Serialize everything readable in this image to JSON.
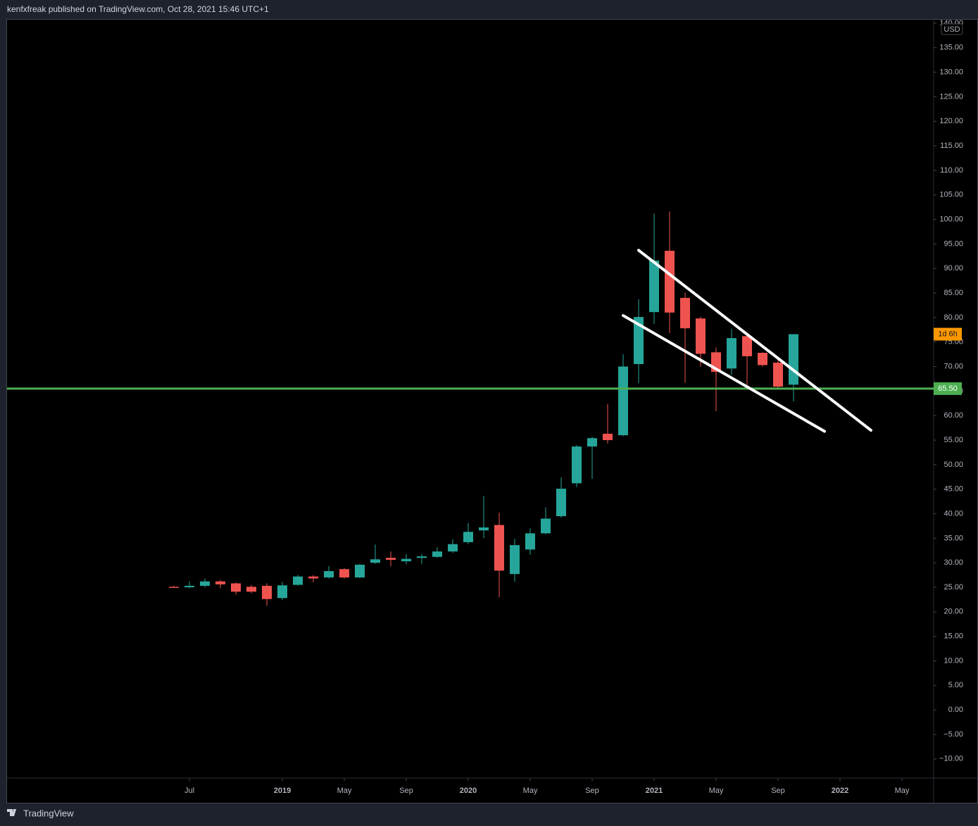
{
  "header": {
    "text": "kenfxfreak published on TradingView.com, Oct 28, 2021 15:46 UTC+1"
  },
  "footer": {
    "brand": "TradingView"
  },
  "chart_data": {
    "type": "candlestick",
    "currency": "USD",
    "x": [
      "2018-06",
      "2018-07",
      "2018-08",
      "2018-09",
      "2018-10",
      "2018-11",
      "2018-12",
      "2019-01",
      "2019-02",
      "2019-03",
      "2019-04",
      "2019-05",
      "2019-06",
      "2019-07",
      "2019-08",
      "2019-09",
      "2019-10",
      "2019-11",
      "2019-12",
      "2020-01",
      "2020-02",
      "2020-03",
      "2020-04",
      "2020-05",
      "2020-06",
      "2020-07",
      "2020-08",
      "2020-09",
      "2020-10",
      "2020-11",
      "2020-12",
      "2021-01",
      "2021-02",
      "2021-03",
      "2021-04",
      "2021-05",
      "2021-06",
      "2021-07",
      "2021-08",
      "2021-09",
      "2021-10"
    ],
    "open": [
      25.1,
      25.0,
      25.3,
      26.2,
      25.8,
      25.1,
      25.3,
      22.8,
      25.5,
      27.2,
      27.0,
      28.7,
      27.0,
      30.0,
      31.0,
      30.3,
      31.0,
      31.2,
      32.3,
      34.2,
      36.6,
      37.7,
      27.7,
      32.7,
      36.0,
      39.5,
      46.2,
      53.7,
      56.3,
      56.0,
      70.5,
      81.1,
      93.6,
      84.0,
      79.8,
      72.9,
      69.6,
      76.2,
      72.8,
      70.8,
      66.3
    ],
    "high": [
      25.3,
      26.2,
      26.8,
      26.5,
      26.0,
      25.5,
      25.8,
      26.1,
      27.5,
      27.5,
      29.3,
      28.9,
      29.8,
      33.7,
      32.3,
      31.8,
      31.8,
      33.2,
      34.8,
      38.1,
      43.6,
      40.2,
      34.9,
      37.0,
      41.3,
      47.4,
      54.0,
      55.7,
      62.4,
      72.5,
      83.7,
      101.2,
      101.6,
      85.1,
      80.2,
      73.9,
      77.7,
      76.5,
      72.9,
      71.5,
      76.6
    ],
    "low": [
      24.9,
      24.8,
      25.0,
      24.8,
      23.5,
      23.8,
      21.2,
      22.4,
      25.3,
      26.0,
      26.8,
      26.8,
      26.9,
      29.8,
      29.3,
      29.7,
      29.8,
      31.0,
      32.0,
      33.8,
      35.0,
      23.0,
      26.1,
      31.6,
      35.8,
      39.2,
      45.4,
      47.1,
      54.3,
      55.8,
      66.6,
      78.7,
      76.8,
      66.7,
      70.0,
      60.9,
      68.3,
      66.0,
      70.0,
      65.7,
      62.9
    ],
    "close": [
      25.0,
      25.3,
      26.2,
      25.6,
      24.1,
      24.1,
      22.6,
      25.4,
      27.2,
      26.8,
      28.3,
      27.0,
      29.6,
      30.7,
      30.6,
      30.8,
      31.3,
      32.3,
      33.8,
      36.3,
      37.2,
      28.4,
      33.6,
      36.0,
      39.0,
      45.1,
      53.7,
      55.4,
      55.0,
      70.0,
      80.1,
      91.6,
      81.0,
      77.8,
      72.6,
      68.9,
      75.8,
      72.1,
      70.3,
      65.9,
      76.6
    ],
    "up_color": "#26a69a",
    "down_color": "#ef5350",
    "ylim": [
      -13.9,
      140.7
    ],
    "yticks": [
      {
        "value": 140,
        "label": "140.00"
      },
      {
        "value": 135,
        "label": "135.00"
      },
      {
        "value": 130,
        "label": "130.00"
      },
      {
        "value": 125,
        "label": "125.00"
      },
      {
        "value": 120,
        "label": "120.00"
      },
      {
        "value": 115,
        "label": "115.00"
      },
      {
        "value": 110,
        "label": "110.00"
      },
      {
        "value": 105,
        "label": "105.00"
      },
      {
        "value": 100,
        "label": "100.00"
      },
      {
        "value": 95,
        "label": "95.00"
      },
      {
        "value": 90,
        "label": "90.00"
      },
      {
        "value": 85,
        "label": "85.00"
      },
      {
        "value": 80,
        "label": "80.00"
      },
      {
        "value": 75,
        "label": "75.00"
      },
      {
        "value": 70,
        "label": "70.00"
      },
      {
        "value": 65,
        "label": "65.00"
      },
      {
        "value": 60,
        "label": "60.00"
      },
      {
        "value": 55,
        "label": "55.00"
      },
      {
        "value": 50,
        "label": "50.00"
      },
      {
        "value": 45,
        "label": "45.00"
      },
      {
        "value": 40,
        "label": "40.00"
      },
      {
        "value": 35,
        "label": "35.00"
      },
      {
        "value": 30,
        "label": "30.00"
      },
      {
        "value": 25,
        "label": "25.00"
      },
      {
        "value": 20,
        "label": "20.00"
      },
      {
        "value": 15,
        "label": "15.00"
      },
      {
        "value": 10,
        "label": "10.00"
      },
      {
        "value": 5,
        "label": "5.00"
      },
      {
        "value": 0,
        "label": "0.00"
      },
      {
        "value": -5,
        "label": "−5.00"
      },
      {
        "value": -10,
        "label": "−10.00"
      }
    ],
    "xticks": [
      {
        "value": "2018-07",
        "label": "Jul"
      },
      {
        "value": "2019-01",
        "label": "2019"
      },
      {
        "value": "2019-05",
        "label": "May"
      },
      {
        "value": "2019-09",
        "label": "Sep"
      },
      {
        "value": "2020-01",
        "label": "2020"
      },
      {
        "value": "2020-05",
        "label": "May"
      },
      {
        "value": "2020-09",
        "label": "Sep"
      },
      {
        "value": "2021-01",
        "label": "2021"
      },
      {
        "value": "2021-05",
        "label": "May"
      },
      {
        "value": "2021-09",
        "label": "Sep"
      },
      {
        "value": "2022-01",
        "label": "2022"
      },
      {
        "value": "2022-05",
        "label": "May"
      }
    ],
    "grid": false,
    "hline": {
      "value": 65.5,
      "label": "65.50",
      "color": "#4caf50"
    },
    "countdown": {
      "label": "1d 6h",
      "color": "#ff9800"
    },
    "trendlines": [
      {
        "x": [
          "2020-12",
          "2022-03"
        ],
        "y": [
          93.7,
          57.0
        ],
        "color": "#ffffff"
      },
      {
        "x": [
          "2020-11",
          "2021-12"
        ],
        "y": [
          80.4,
          56.8
        ],
        "color": "#ffffff"
      }
    ]
  }
}
